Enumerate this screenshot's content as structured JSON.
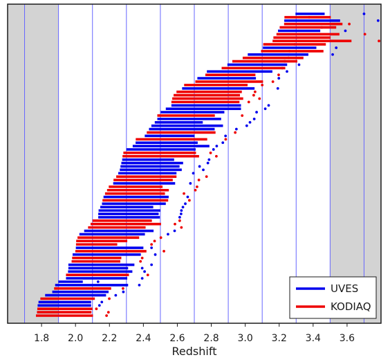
{
  "chart_data": {
    "type": "scatter",
    "title": "",
    "xlabel": "Redshift",
    "ylabel": "",
    "xlim": [
      1.6,
      3.8
    ],
    "x_ticks": [
      "1.8",
      "2.0",
      "2.2",
      "2.4",
      "2.6",
      "2.8",
      "3.0",
      "3.2",
      "3.4",
      "3.6"
    ],
    "x_tick_values": [
      1.8,
      2.0,
      2.2,
      2.4,
      2.6,
      2.8,
      3.0,
      3.2,
      3.4,
      3.6
    ],
    "shaded_regions": [
      [
        1.6,
        1.9
      ],
      [
        3.5,
        3.8
      ]
    ],
    "vertical_lines": [
      1.7,
      1.9,
      2.1,
      2.3,
      2.5,
      2.7,
      2.9,
      3.1,
      3.3,
      3.5,
      3.7
    ],
    "legend_position": "lower-right",
    "colors": {
      "UVES": "#0000ee",
      "KODIAQ": "#ee0000",
      "grid": "#6666ff",
      "shade": "#d3d3d3"
    },
    "series": [
      {
        "name": "UVES",
        "color": "#0000ee",
        "segments": [
          [
            1.899,
            2.043,
            2.133
          ],
          [
            1.777,
            2.092,
            2.141
          ],
          [
            1.782,
            2.092,
            2.155
          ],
          [
            1.821,
            2.18,
            2.237
          ],
          [
            1.863,
            2.195,
            2.282
          ],
          [
            1.88,
            2.31,
            2.376
          ],
          [
            1.944,
            2.305,
            2.393
          ],
          [
            1.958,
            2.31,
            2.393
          ],
          [
            1.956,
            2.335,
            2.407
          ],
          [
            1.958,
            2.347,
            2.448
          ],
          [
            2.002,
            2.4,
            2.448
          ],
          [
            1.983,
            2.385,
            2.47
          ],
          [
            2.023,
            2.409,
            2.545
          ],
          [
            2.051,
            2.46,
            2.584
          ],
          [
            2.134,
            2.497,
            2.614
          ],
          [
            2.134,
            2.49,
            2.622
          ],
          [
            2.136,
            2.5,
            2.624
          ],
          [
            2.146,
            2.458,
            2.633
          ],
          [
            2.156,
            2.532,
            2.647
          ],
          [
            2.165,
            2.549,
            2.661
          ],
          [
            2.222,
            2.587,
            2.677
          ],
          [
            2.252,
            2.595,
            2.694
          ],
          [
            2.265,
            2.613,
            2.731
          ],
          [
            2.261,
            2.626,
            2.753
          ],
          [
            2.27,
            2.634,
            2.78
          ],
          [
            2.275,
            2.581,
            2.787
          ],
          [
            2.3,
            2.708,
            2.813
          ],
          [
            2.337,
            2.789,
            2.832
          ],
          [
            2.354,
            2.72,
            2.868
          ],
          [
            2.408,
            2.702,
            2.884
          ],
          [
            2.433,
            2.82,
            2.948
          ],
          [
            2.447,
            2.869,
            3.009
          ],
          [
            2.467,
            2.75,
            3.028
          ],
          [
            2.482,
            2.858,
            3.053
          ],
          [
            2.502,
            2.877,
            3.067
          ],
          [
            2.532,
            2.975,
            3.118
          ],
          [
            2.565,
            2.975,
            3.138
          ],
          [
            2.628,
            3.055,
            3.192
          ],
          [
            2.718,
            3.063,
            3.198
          ],
          [
            2.774,
            3.16,
            3.246
          ],
          [
            2.895,
            3.247,
            3.317
          ],
          [
            3.015,
            3.372,
            3.515
          ],
          [
            3.104,
            3.419,
            3.536
          ],
          [
            3.193,
            3.442,
            3.59
          ],
          [
            3.296,
            3.468,
            3.7
          ],
          [
            3.23,
            3.559,
            3.783
          ]
        ]
      },
      {
        "name": "KODIAQ",
        "color": "#ee0000",
        "segments": [
          [
            1.775,
            2.1,
            2.123
          ],
          [
            1.767,
            2.103,
            2.183
          ],
          [
            1.773,
            2.094,
            2.194
          ],
          [
            1.793,
            2.114,
            2.199
          ],
          [
            1.874,
            2.21,
            2.28
          ],
          [
            1.977,
            2.264,
            2.383
          ],
          [
            1.98,
            2.27,
            2.393
          ],
          [
            1.944,
            2.315,
            2.426
          ],
          [
            2.003,
            2.246,
            2.448
          ],
          [
            2.004,
            2.305,
            2.466
          ],
          [
            2.012,
            2.375,
            2.503
          ],
          [
            1.999,
            2.418,
            2.521
          ],
          [
            2.089,
            2.504,
            2.586
          ],
          [
            2.1,
            2.45,
            2.614
          ],
          [
            2.074,
            2.413,
            2.624
          ],
          [
            2.174,
            2.527,
            2.639
          ],
          [
            2.159,
            2.546,
            2.671
          ],
          [
            2.186,
            2.55,
            2.706
          ],
          [
            2.196,
            2.513,
            2.716
          ],
          [
            2.224,
            2.573,
            2.727
          ],
          [
            2.24,
            2.595,
            2.772
          ],
          [
            2.282,
            2.71,
            2.796
          ],
          [
            2.277,
            2.728,
            2.83
          ],
          [
            2.355,
            2.776,
            2.885
          ],
          [
            2.42,
            2.825,
            2.941
          ],
          [
            2.482,
            2.821,
            2.982
          ],
          [
            2.565,
            2.966,
            3.021
          ],
          [
            2.578,
            2.969,
            3.05
          ],
          [
            2.595,
            2.98,
            3.058
          ],
          [
            2.57,
            2.988,
            3.084
          ],
          [
            2.64,
            3.014,
            3.1
          ],
          [
            2.706,
            3.105,
            3.163
          ],
          [
            2.765,
            3.06,
            3.197
          ],
          [
            2.861,
            3.236,
            3.218
          ],
          [
            2.924,
            3.307,
            3.233
          ],
          [
            2.985,
            3.343,
            3.255
          ],
          [
            3.093,
            3.461,
            3.261
          ],
          [
            3.106,
            3.475,
            3.291
          ],
          [
            3.166,
            3.503,
            3.305
          ],
          [
            3.231,
            3.504,
            3.377
          ],
          [
            3.203,
            3.536,
            3.451
          ],
          [
            3.229,
            3.573,
            3.613
          ],
          [
            3.184,
            3.555,
            3.705
          ],
          [
            3.161,
            3.626,
            3.788
          ]
        ]
      }
    ]
  }
}
